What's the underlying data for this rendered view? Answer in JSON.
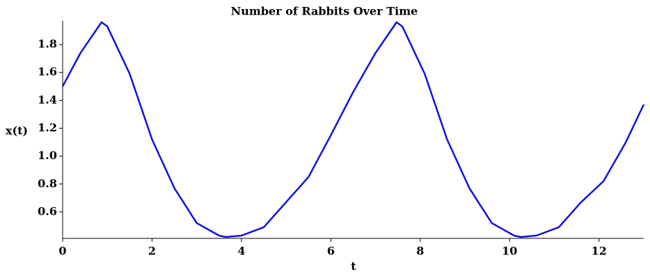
{
  "chart_data": {
    "type": "line",
    "title": "Number of Rabbits Over Time",
    "x_label": "t",
    "y_label": "x(t)",
    "x": [
      0,
      0.4,
      0.87,
      1.0,
      1.5,
      2.0,
      2.5,
      3.0,
      3.5,
      3.65,
      4.0,
      4.5,
      5.0,
      5.5,
      6.0,
      6.5,
      7.0,
      7.47,
      7.6,
      8.1,
      8.6,
      9.1,
      9.6,
      10.1,
      10.25,
      10.6,
      11.1,
      11.6,
      12.1,
      12.6,
      13.0
    ],
    "series": [
      {
        "name": "x(t)",
        "color": "#1010e0",
        "values": [
          1.5,
          1.74,
          1.96,
          1.93,
          1.59,
          1.12,
          0.77,
          0.52,
          0.43,
          0.42,
          0.43,
          0.49,
          0.67,
          0.85,
          1.15,
          1.46,
          1.74,
          1.96,
          1.93,
          1.59,
          1.12,
          0.77,
          0.52,
          0.43,
          0.42,
          0.43,
          0.49,
          0.67,
          0.82,
          1.1,
          1.37
        ]
      }
    ],
    "xlim": [
      0,
      13
    ],
    "xticks": [
      0,
      2,
      4,
      6,
      8,
      10,
      12
    ],
    "ylim": [
      0.41,
      1.97
    ],
    "yticks": [
      0.6,
      0.8,
      {
        "value": 1.0,
        "label": "1.0"
      },
      1.2,
      1.4,
      1.6,
      1.8
    ]
  }
}
